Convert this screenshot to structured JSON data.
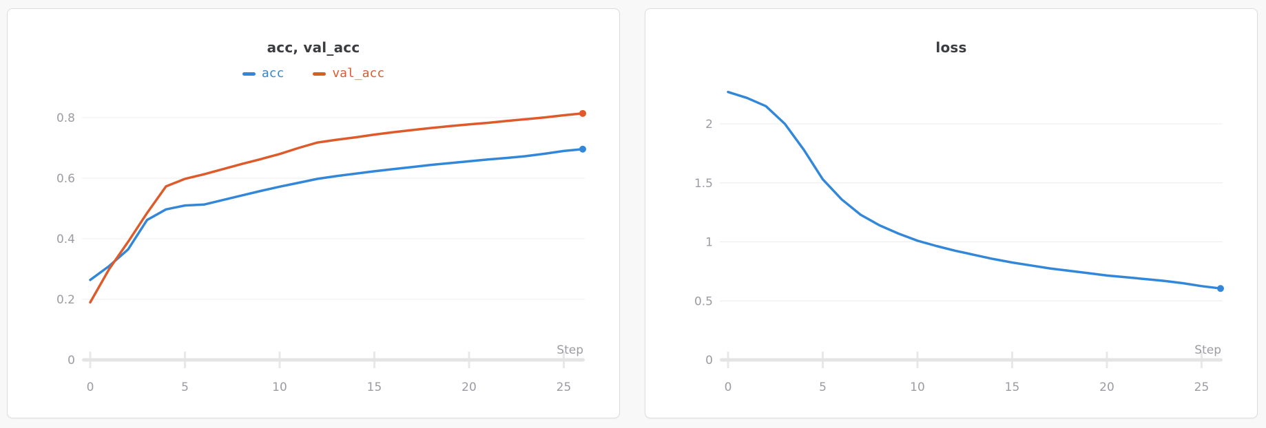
{
  "page": {
    "background_color": "#f8f8f8",
    "card_background": "#ffffff",
    "card_border_color": "#dcdcdc",
    "grid_color": "#ececec",
    "axis_bar_color": "#e4e4e4",
    "tick_mark_color": "#e8e8e8",
    "tick_label_color": "#9b9ba3",
    "title_color": "#3b3d40"
  },
  "chart_data": [
    {
      "type": "line",
      "title": "acc, val_acc",
      "xlabel": "Step",
      "ylabel": "",
      "xlim": [
        0,
        26.5
      ],
      "ylim": [
        0,
        0.88
      ],
      "grid": true,
      "legend_position": "top-center",
      "x_ticks": [
        0,
        5,
        10,
        15,
        20,
        25
      ],
      "y_ticks": [
        [
          0,
          "0"
        ],
        [
          0.2,
          "0.2"
        ],
        [
          0.4,
          "0.4"
        ],
        [
          0.6,
          "0.6"
        ],
        [
          0.8,
          "0.8"
        ]
      ],
      "x": [
        0,
        1,
        2,
        3,
        4,
        5,
        6,
        7,
        8,
        9,
        10,
        11,
        12,
        13,
        14,
        15,
        16,
        17,
        18,
        19,
        20,
        21,
        22,
        23,
        24,
        25,
        26
      ],
      "series": [
        {
          "name": "acc",
          "color": "#3287d9",
          "values": [
            0.264,
            0.31,
            0.365,
            0.462,
            0.497,
            0.51,
            0.513,
            0.528,
            0.543,
            0.558,
            0.572,
            0.585,
            0.598,
            0.607,
            0.615,
            0.623,
            0.63,
            0.637,
            0.644,
            0.65,
            0.656,
            0.662,
            0.667,
            0.673,
            0.681,
            0.69,
            0.696
          ]
        },
        {
          "name": "val_acc",
          "color": "#dd5b2b",
          "values": [
            0.19,
            0.3,
            0.39,
            0.485,
            0.573,
            0.598,
            0.613,
            0.63,
            0.647,
            0.663,
            0.68,
            0.7,
            0.718,
            0.727,
            0.735,
            0.744,
            0.752,
            0.759,
            0.766,
            0.772,
            0.778,
            0.783,
            0.789,
            0.795,
            0.801,
            0.808,
            0.814
          ]
        }
      ]
    },
    {
      "type": "line",
      "title": "loss",
      "xlabel": "Step",
      "ylabel": "",
      "xlim": [
        0,
        26.5
      ],
      "ylim": [
        0,
        2.35
      ],
      "grid": true,
      "legend_position": "none",
      "x_ticks": [
        0,
        5,
        10,
        15,
        20,
        25
      ],
      "y_ticks": [
        [
          0,
          "0"
        ],
        [
          0.5,
          "0.5"
        ],
        [
          1,
          "1"
        ],
        [
          1.5,
          "1.5"
        ],
        [
          2,
          "2"
        ]
      ],
      "x": [
        0,
        1,
        2,
        3,
        4,
        5,
        6,
        7,
        8,
        9,
        10,
        11,
        12,
        13,
        14,
        15,
        16,
        17,
        18,
        19,
        20,
        21,
        22,
        23,
        24,
        25,
        26
      ],
      "series": [
        {
          "name": "loss",
          "color": "#3287d9",
          "values": [
            2.27,
            2.22,
            2.15,
            2.0,
            1.78,
            1.53,
            1.36,
            1.23,
            1.14,
            1.07,
            1.01,
            0.965,
            0.925,
            0.89,
            0.855,
            0.825,
            0.8,
            0.775,
            0.755,
            0.735,
            0.715,
            0.7,
            0.685,
            0.67,
            0.65,
            0.625,
            0.605
          ]
        }
      ]
    }
  ]
}
